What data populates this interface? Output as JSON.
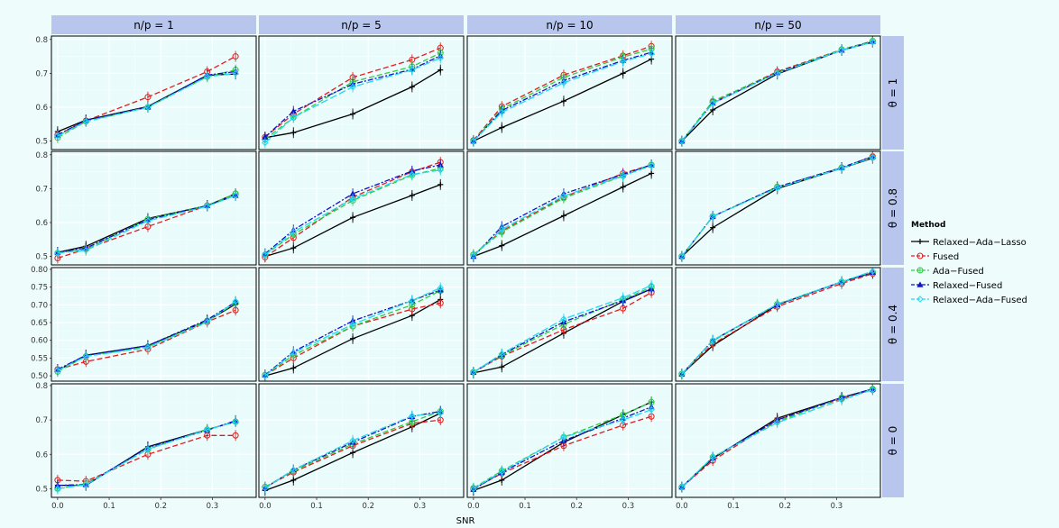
{
  "chart_data": {
    "type": "line",
    "xlabel": "SNR",
    "ylabel": "",
    "xlim": [
      -0.012,
      0.385
    ],
    "x_ticks": [
      0.0,
      0.1,
      0.2,
      0.3
    ],
    "x_tick_labels": [
      "0.0",
      "0.1",
      "0.2",
      "0.3"
    ],
    "grid": true,
    "legend_placement": "right",
    "legend_title": "Method",
    "columns": [
      {
        "label": "n/p = 1",
        "x": [
          0.0,
          0.055,
          0.175,
          0.29,
          0.345
        ]
      },
      {
        "label": "n/p = 5",
        "x": [
          0.0,
          0.055,
          0.17,
          0.285,
          0.34
        ]
      },
      {
        "label": "n/p = 10",
        "x": [
          0.0,
          0.055,
          0.175,
          0.29,
          0.345
        ]
      },
      {
        "label": "n/p = 50",
        "x": [
          0.0,
          0.06,
          0.185,
          0.31,
          0.37
        ]
      }
    ],
    "rows": [
      {
        "label": "θ = 1",
        "ylim": [
          0.475,
          0.81
        ],
        "y_ticks": [
          0.5,
          0.6,
          0.7,
          0.8
        ],
        "y_tick_labels": [
          "0.5",
          "0.6",
          "0.7",
          "0.8"
        ]
      },
      {
        "label": "θ = 0.8",
        "ylim": [
          0.475,
          0.81
        ],
        "y_ticks": [
          0.5,
          0.6,
          0.7,
          0.8
        ],
        "y_tick_labels": [
          "0.5",
          "0.6",
          "0.7",
          "0.8"
        ]
      },
      {
        "label": "θ = 0.4",
        "ylim": [
          0.485,
          0.805
        ],
        "y_ticks": [
          0.5,
          0.55,
          0.6,
          0.65,
          0.7,
          0.75,
          0.8
        ],
        "y_tick_labels": [
          "0.50",
          "0.55",
          "0.60",
          "0.65",
          "0.70",
          "0.75",
          "0.80"
        ]
      },
      {
        "label": "θ = 0",
        "ylim": [
          0.475,
          0.805
        ],
        "y_ticks": [
          0.5,
          0.6,
          0.7,
          0.8
        ],
        "y_tick_labels": [
          "0.5",
          "0.6",
          "0.7",
          "0.8"
        ]
      }
    ],
    "series": [
      {
        "name": "Relaxed−Ada−Lasso",
        "color": "#000000",
        "dash": "",
        "marker": "plus"
      },
      {
        "name": "Fused",
        "color": "#e41a1c",
        "dash": "6,3",
        "marker": "circle"
      },
      {
        "name": "Ada−Fused",
        "color": "#2ecc40",
        "dash": "6,3",
        "marker": "circle-plus"
      },
      {
        "name": "Relaxed−Fused",
        "color": "#1010c8",
        "dash": "6,2,2,2",
        "marker": "triangle"
      },
      {
        "name": "Relaxed−Ada−Fused",
        "color": "#22d8ee",
        "dash": "8,3",
        "marker": "diamond"
      }
    ],
    "panels": [
      [
        {
          "Relaxed−Ada−Lasso": [
            0.528,
            0.562,
            0.602,
            0.694,
            0.698
          ],
          "Fused": [
            0.518,
            0.56,
            0.63,
            0.705,
            0.75
          ],
          "Ada−Fused": [
            0.51,
            0.558,
            0.6,
            0.69,
            0.71
          ],
          "Relaxed−Fused": [
            0.518,
            0.562,
            0.6,
            0.695,
            0.705
          ],
          "Relaxed−Ada−Fused": [
            0.515,
            0.558,
            0.6,
            0.69,
            0.7
          ]
        },
        {
          "Relaxed−Ada−Lasso": [
            0.51,
            0.525,
            0.58,
            0.66,
            0.71
          ],
          "Fused": [
            0.512,
            0.58,
            0.688,
            0.74,
            0.775
          ],
          "Ada−Fused": [
            0.505,
            0.57,
            0.675,
            0.72,
            0.76
          ],
          "Relaxed−Fused": [
            0.512,
            0.588,
            0.668,
            0.712,
            0.752
          ],
          "Relaxed−Ada−Fused": [
            0.495,
            0.57,
            0.66,
            0.71,
            0.745
          ]
        },
        {
          "Relaxed−Ada−Lasso": [
            0.5,
            0.54,
            0.618,
            0.7,
            0.742
          ],
          "Fused": [
            0.502,
            0.602,
            0.695,
            0.752,
            0.78
          ],
          "Ada−Fused": [
            0.5,
            0.595,
            0.688,
            0.748,
            0.772
          ],
          "Relaxed−Fused": [
            0.5,
            0.59,
            0.678,
            0.738,
            0.762
          ],
          "Relaxed−Ada−Fused": [
            0.5,
            0.585,
            0.672,
            0.735,
            0.758
          ]
        },
        {
          "Relaxed−Ada−Lasso": [
            0.5,
            0.592,
            0.698,
            0.768,
            0.792
          ],
          "Fused": [
            0.5,
            0.615,
            0.705,
            0.77,
            0.795
          ],
          "Ada−Fused": [
            0.5,
            0.618,
            0.702,
            0.77,
            0.795
          ],
          "Relaxed−Fused": [
            0.5,
            0.612,
            0.702,
            0.768,
            0.794
          ],
          "Relaxed−Ada−Fused": [
            0.5,
            0.612,
            0.7,
            0.768,
            0.792
          ]
        }
      ],
      [
        {
          "Relaxed−Ada−Lasso": [
            0.512,
            0.53,
            0.612,
            0.65,
            0.685
          ],
          "Fused": [
            0.495,
            0.522,
            0.588,
            0.65,
            0.685
          ],
          "Ada−Fused": [
            0.51,
            0.522,
            0.61,
            0.65,
            0.685
          ],
          "Relaxed−Fused": [
            0.512,
            0.525,
            0.608,
            0.65,
            0.68
          ],
          "Relaxed−Ada−Fused": [
            0.51,
            0.518,
            0.605,
            0.648,
            0.68
          ]
        },
        {
          "Relaxed−Ada−Lasso": [
            0.5,
            0.525,
            0.615,
            0.68,
            0.712
          ],
          "Fused": [
            0.498,
            0.555,
            0.675,
            0.75,
            0.778
          ],
          "Ada−Fused": [
            0.505,
            0.565,
            0.665,
            0.74,
            0.76
          ],
          "Relaxed−Fused": [
            0.508,
            0.578,
            0.685,
            0.752,
            0.77
          ],
          "Relaxed−Ada−Fused": [
            0.505,
            0.572,
            0.67,
            0.742,
            0.755
          ]
        },
        {
          "Relaxed−Ada−Lasso": [
            0.5,
            0.532,
            0.62,
            0.705,
            0.745
          ],
          "Fused": [
            0.505,
            0.575,
            0.675,
            0.745,
            0.77
          ],
          "Ada−Fused": [
            0.505,
            0.572,
            0.672,
            0.738,
            0.77
          ],
          "Relaxed−Fused": [
            0.5,
            0.588,
            0.685,
            0.742,
            0.77
          ],
          "Relaxed−Ada−Fused": [
            0.502,
            0.58,
            0.678,
            0.738,
            0.768
          ]
        },
        {
          "Relaxed−Ada−Lasso": [
            0.5,
            0.585,
            0.7,
            0.76,
            0.79
          ],
          "Fused": [
            0.5,
            0.618,
            0.705,
            0.762,
            0.795
          ],
          "Ada−Fused": [
            0.5,
            0.618,
            0.705,
            0.762,
            0.792
          ],
          "Relaxed−Fused": [
            0.5,
            0.618,
            0.705,
            0.762,
            0.795
          ],
          "Relaxed−Ada−Fused": [
            0.5,
            0.618,
            0.702,
            0.76,
            0.792
          ]
        }
      ],
      [
        {
          "Relaxed−Ada−Lasso": [
            0.515,
            0.558,
            0.585,
            0.655,
            0.702
          ],
          "Fused": [
            0.518,
            0.54,
            0.575,
            0.652,
            0.685
          ],
          "Ada−Fused": [
            0.512,
            0.555,
            0.582,
            0.655,
            0.705
          ],
          "Relaxed−Fused": [
            0.518,
            0.558,
            0.585,
            0.658,
            0.708
          ],
          "Relaxed−Ada−Fused": [
            0.515,
            0.555,
            0.58,
            0.652,
            0.71
          ]
        },
        {
          "Relaxed−Ada−Lasso": [
            0.5,
            0.522,
            0.605,
            0.67,
            0.715
          ],
          "Fused": [
            0.502,
            0.55,
            0.64,
            0.688,
            0.705
          ],
          "Ada−Fused": [
            0.502,
            0.558,
            0.64,
            0.7,
            0.74
          ],
          "Relaxed−Fused": [
            0.502,
            0.568,
            0.655,
            0.712,
            0.742
          ],
          "Relaxed−Ada−Fused": [
            0.5,
            0.565,
            0.645,
            0.712,
            0.748
          ]
        },
        {
          "Relaxed−Ada−Lasso": [
            0.508,
            0.525,
            0.62,
            0.71,
            0.745
          ],
          "Fused": [
            0.51,
            0.555,
            0.63,
            0.69,
            0.735
          ],
          "Ada−Fused": [
            0.51,
            0.558,
            0.645,
            0.715,
            0.75
          ],
          "Relaxed−Fused": [
            0.51,
            0.56,
            0.652,
            0.712,
            0.745
          ],
          "Relaxed−Ada−Fused": [
            0.51,
            0.562,
            0.66,
            0.72,
            0.755
          ]
        },
        {
          "Relaxed−Ada−Lasso": [
            0.505,
            0.585,
            0.7,
            0.765,
            0.79
          ],
          "Fused": [
            0.505,
            0.59,
            0.695,
            0.76,
            0.788
          ],
          "Ada−Fused": [
            0.505,
            0.598,
            0.702,
            0.765,
            0.792
          ],
          "Relaxed−Fused": [
            0.505,
            0.6,
            0.7,
            0.765,
            0.792
          ],
          "Relaxed−Ada−Fused": [
            0.505,
            0.6,
            0.702,
            0.765,
            0.795
          ]
        }
      ],
      [
        {
          "Relaxed−Ada−Lasso": [
            0.51,
            0.51,
            0.622,
            0.672,
            0.695
          ],
          "Fused": [
            0.525,
            0.522,
            0.6,
            0.655,
            0.655
          ],
          "Ada−Fused": [
            0.5,
            0.515,
            0.615,
            0.672,
            0.695
          ],
          "Relaxed−Fused": [
            0.51,
            0.512,
            0.62,
            0.67,
            0.698
          ],
          "Relaxed−Ada−Fused": [
            0.5,
            0.512,
            0.615,
            0.672,
            0.695
          ]
        },
        {
          "Relaxed−Ada−Lasso": [
            0.495,
            0.525,
            0.605,
            0.68,
            0.72
          ],
          "Fused": [
            0.505,
            0.548,
            0.625,
            0.69,
            0.7
          ],
          "Ada−Fused": [
            0.505,
            0.552,
            0.63,
            0.695,
            0.725
          ],
          "Relaxed−Fused": [
            0.502,
            0.555,
            0.635,
            0.71,
            0.725
          ],
          "Relaxed−Ada−Fused": [
            0.502,
            0.555,
            0.64,
            0.712,
            0.72
          ]
        },
        {
          "Relaxed−Ada−Lasso": [
            0.495,
            0.525,
            0.635,
            0.715,
            0.752
          ],
          "Fused": [
            0.5,
            0.545,
            0.625,
            0.685,
            0.71
          ],
          "Ada−Fused": [
            0.502,
            0.552,
            0.65,
            0.715,
            0.752
          ],
          "Relaxed−Fused": [
            0.498,
            0.548,
            0.64,
            0.705,
            0.738
          ],
          "Relaxed−Ada−Fused": [
            0.5,
            0.55,
            0.65,
            0.7,
            0.73
          ]
        },
        {
          "Relaxed−Ada−Lasso": [
            0.505,
            0.588,
            0.705,
            0.765,
            0.79
          ],
          "Fused": [
            0.505,
            0.582,
            0.7,
            0.762,
            0.788
          ],
          "Ada−Fused": [
            0.505,
            0.592,
            0.695,
            0.765,
            0.79
          ],
          "Relaxed−Fused": [
            0.505,
            0.59,
            0.7,
            0.765,
            0.79
          ],
          "Relaxed−Ada−Fused": [
            0.505,
            0.592,
            0.692,
            0.758,
            0.788
          ]
        }
      ]
    ]
  }
}
